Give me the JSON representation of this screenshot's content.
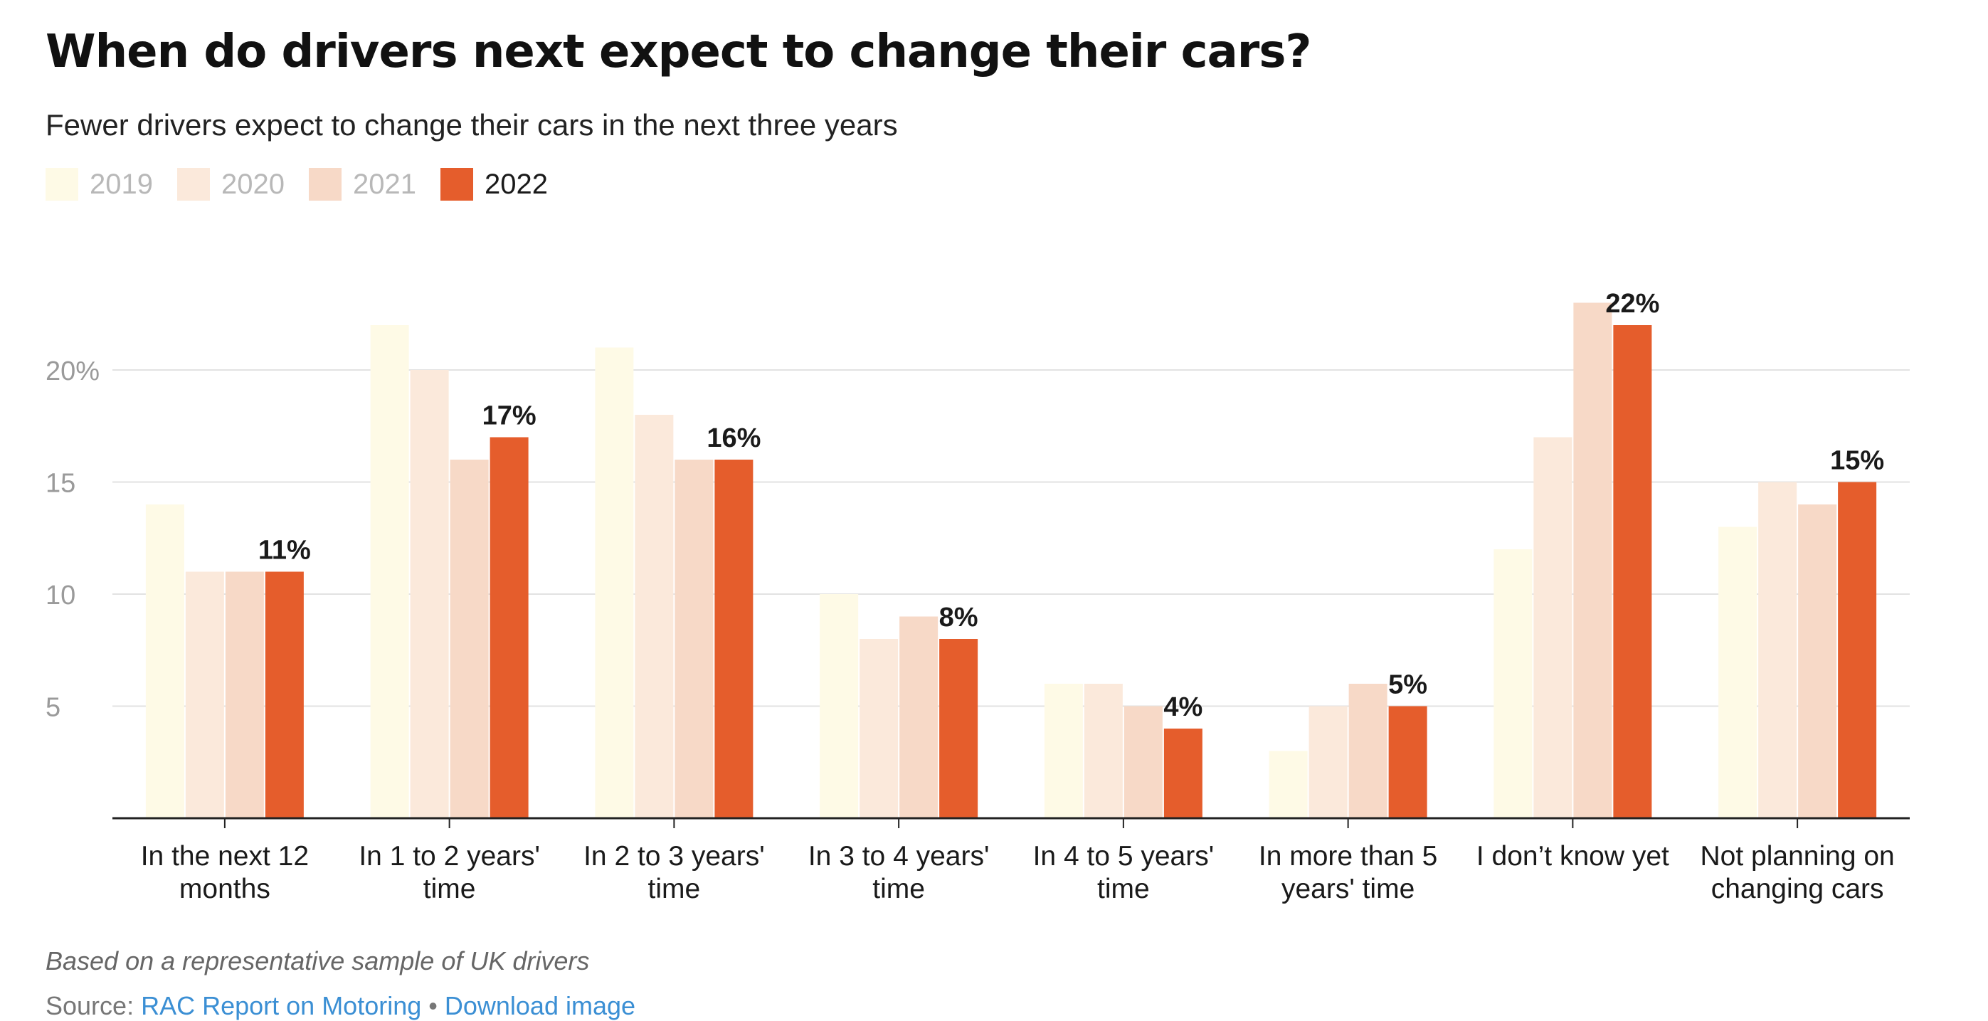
{
  "title": "When do drivers next expect to change their cars?",
  "subtitle": "Fewer drivers expect to change their cars in the next three years",
  "legend": [
    {
      "label": "2019",
      "color": "#fefae6",
      "text_color": "#b8b8b8"
    },
    {
      "label": "2020",
      "color": "#fbe9db",
      "text_color": "#b8b8b8"
    },
    {
      "label": "2021",
      "color": "#f7d9c7",
      "text_color": "#b8b8b8"
    },
    {
      "label": "2022",
      "color": "#e55d2c",
      "text_color": "#1a1a1a"
    }
  ],
  "chart_data": {
    "type": "bar",
    "categories": [
      [
        "In the next 12",
        "months"
      ],
      [
        "In 1 to 2 years'",
        "time"
      ],
      [
        "In 2 to 3 years'",
        "time"
      ],
      [
        "In 3 to 4 years'",
        "time"
      ],
      [
        "In 4 to 5 years'",
        "time"
      ],
      [
        "In more than 5",
        "years' time"
      ],
      [
        "I don’t know yet"
      ],
      [
        "Not planning on",
        "changing cars"
      ]
    ],
    "series": [
      {
        "name": "2019",
        "values": [
          14,
          22,
          21,
          10,
          6,
          3,
          12,
          13
        ]
      },
      {
        "name": "2020",
        "values": [
          11,
          20,
          18,
          8,
          6,
          5,
          17,
          15
        ]
      },
      {
        "name": "2021",
        "values": [
          11,
          16,
          16,
          9,
          5,
          6,
          23,
          14
        ]
      },
      {
        "name": "2022",
        "values": [
          11,
          17,
          16,
          8,
          4,
          5,
          22,
          15
        ]
      }
    ],
    "data_labels": [
      "11%",
      "17%",
      "16%",
      "8%",
      "4%",
      "5%",
      "22%",
      "15%"
    ],
    "y_ticks": [
      {
        "value": 20,
        "label": "20%"
      },
      {
        "value": 15,
        "label": "15"
      },
      {
        "value": 10,
        "label": "10"
      },
      {
        "value": 5,
        "label": "5"
      }
    ],
    "ylim": [
      0,
      25
    ],
    "grid": true,
    "legend_position": "top-left"
  },
  "notes": "Based on a representative sample of UK drivers",
  "source": {
    "prefix": "Source: ",
    "link": "RAC Report on Motoring",
    "separator": " • ",
    "download": "Download image"
  }
}
